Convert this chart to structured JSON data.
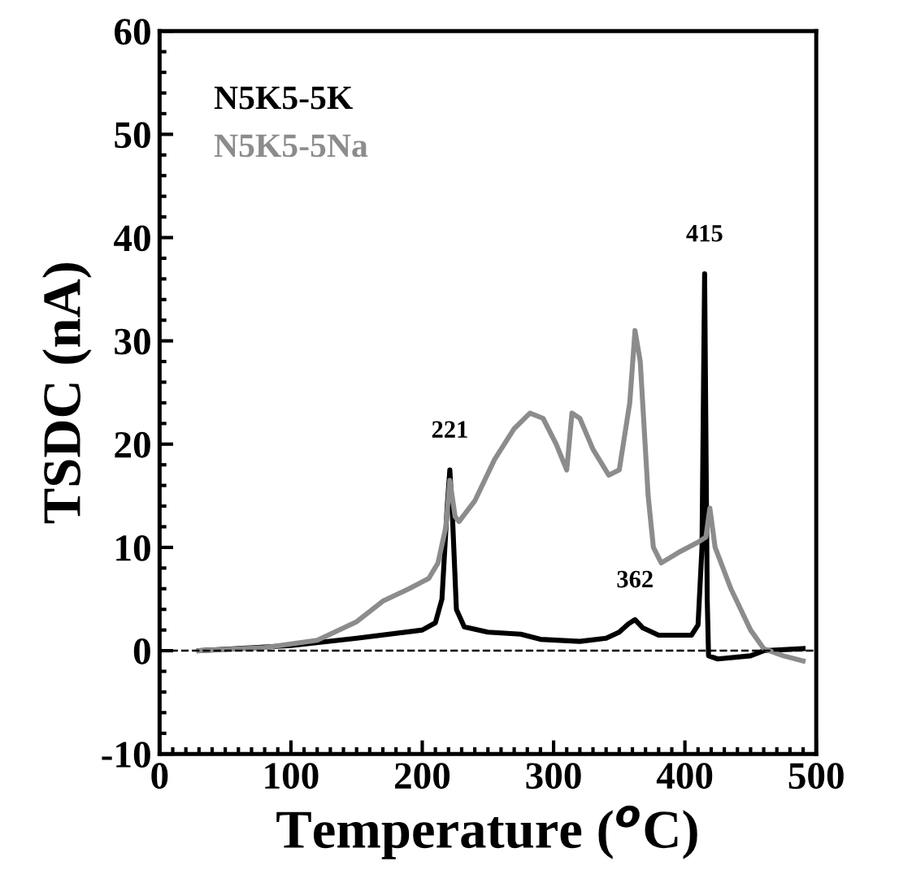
{
  "chart_data": {
    "type": "line",
    "xlabel": "Temperature ($^{o}$C)",
    "ylabel": "TSDC (nA)",
    "xlim": [
      0,
      500
    ],
    "ylim": [
      -10,
      60
    ],
    "xticks": [
      0,
      100,
      200,
      300,
      400,
      500
    ],
    "yticks": [
      -10,
      0,
      10,
      20,
      30,
      40,
      50,
      60
    ],
    "grid": false,
    "legend": "top left",
    "marker": "none",
    "line_style": "solid",
    "series": [
      {
        "name": "N5K5-5K",
        "color": "#000000",
        "x": [
          30,
          100,
          150,
          200,
          210,
          215,
          219,
          221,
          223,
          226,
          232,
          250,
          275,
          290,
          320,
          340,
          350,
          357,
          362,
          368,
          380,
          405,
          410,
          413,
          415,
          417,
          418,
          425,
          450,
          460,
          490
        ],
        "values": [
          0,
          0.5,
          1.2,
          2,
          2.7,
          5,
          14,
          17.5,
          13,
          4,
          2.3,
          1.8,
          1.6,
          1.1,
          0.9,
          1.2,
          1.8,
          2.6,
          3,
          2.2,
          1.5,
          1.5,
          2.5,
          10,
          36.5,
          5,
          -0.5,
          -0.8,
          -0.5,
          0,
          0.2
        ]
      },
      {
        "name": "N5K5-5Na",
        "color": "#8c8c8c",
        "x": [
          30,
          80,
          120,
          150,
          170,
          190,
          205,
          212,
          218,
          221,
          225,
          228,
          240,
          255,
          270,
          282,
          292,
          302,
          310,
          314,
          320,
          330,
          342,
          350,
          358,
          362,
          366,
          372,
          376,
          382,
          395,
          410,
          416,
          419,
          423,
          435,
          450,
          460,
          475,
          490
        ],
        "values": [
          0,
          0.3,
          1,
          2.8,
          4.8,
          6,
          7,
          8.5,
          12,
          16.5,
          13,
          12.5,
          14.5,
          18.5,
          21.5,
          23,
          22.5,
          20,
          17.5,
          23,
          22.5,
          19.5,
          17,
          17.5,
          24,
          31,
          28,
          15,
          10,
          8.5,
          9.5,
          10.5,
          11,
          13.8,
          10,
          6,
          2,
          0.2,
          -0.5,
          -1
        ]
      }
    ],
    "ref_lines": [
      {
        "axis": "y",
        "value": 0,
        "line_style": "dashed",
        "color": "#000000"
      }
    ],
    "annotations": [
      {
        "text": "221",
        "x": 221,
        "y": 17.5
      },
      {
        "text": "362",
        "x": 362,
        "y": 3
      },
      {
        "text": "415",
        "x": 415,
        "y": 36.5
      }
    ]
  }
}
